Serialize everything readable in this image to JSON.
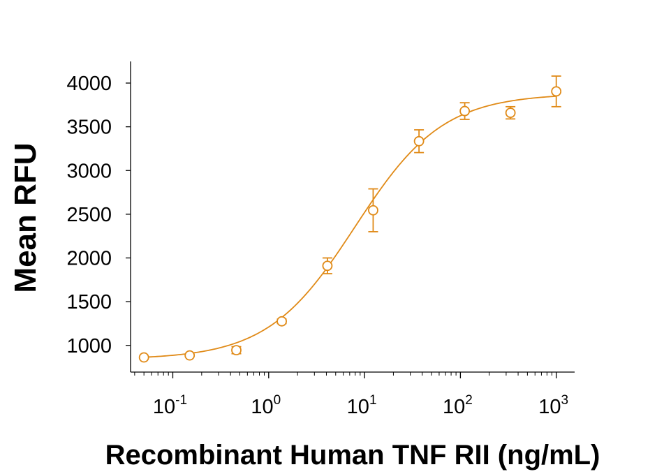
{
  "chart_data": {
    "type": "scatter",
    "title": "",
    "xlabel": "Recombinant Human TNF RII (ng/mL)",
    "ylabel": "Mean RFU",
    "xscale": "log",
    "xlim": [
      0.04,
      1300
    ],
    "ylim": [
      750,
      4200
    ],
    "x_ticks": [
      {
        "value": 0.1,
        "base": "10",
        "exp": "-1"
      },
      {
        "value": 1,
        "base": "10",
        "exp": "0"
      },
      {
        "value": 10,
        "base": "10",
        "exp": "1"
      },
      {
        "value": 100,
        "base": "10",
        "exp": "2"
      },
      {
        "value": 1000,
        "base": "10",
        "exp": "3"
      }
    ],
    "y_ticks": [
      {
        "value": 1000,
        "label": "1000"
      },
      {
        "value": 1500,
        "label": "1500"
      },
      {
        "value": 2000,
        "label": "2000"
      },
      {
        "value": 2500,
        "label": "2500"
      },
      {
        "value": 3000,
        "label": "3000"
      },
      {
        "value": 3500,
        "label": "3500"
      },
      {
        "value": 4000,
        "label": "4000"
      }
    ],
    "grid": false,
    "legend": "none",
    "color": "#E08A17",
    "series": [
      {
        "x": [
          0.05,
          0.15,
          0.46,
          1.37,
          4.1,
          12.3,
          37,
          111,
          333,
          1000
        ],
        "y": [
          862,
          885,
          945,
          1275,
          1910,
          2545,
          3335,
          3680,
          3660,
          3905
        ],
        "err": [
          10,
          10,
          40,
          25,
          90,
          245,
          130,
          95,
          70,
          175
        ]
      }
    ],
    "fit": {
      "type": "4PL",
      "bottom": 840,
      "top": 3880,
      "ec50": 8.0,
      "hill": 0.95
    }
  }
}
